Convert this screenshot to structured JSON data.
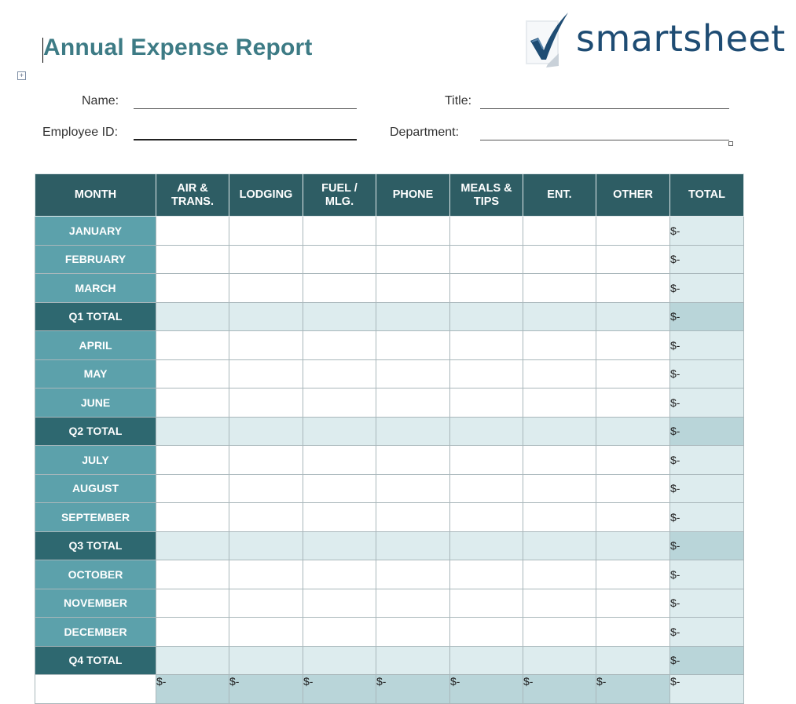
{
  "document": {
    "title": "Annual Expense Report",
    "brand": "smartsheet"
  },
  "fields": {
    "name_label": "Name:",
    "title_label": "Title:",
    "employee_id_label": "Employee ID:",
    "department_label": "Department:"
  },
  "table": {
    "headers": [
      "MONTH",
      "AIR &\nTRANS.",
      "LODGING",
      "FUEL /\nMLG.",
      "PHONE",
      "MEALS &\nTIPS",
      "ENT.",
      "OTHER",
      "TOTAL"
    ],
    "rows": [
      {
        "label": "JANUARY",
        "total": "$-"
      },
      {
        "label": "FEBRUARY",
        "total": "$-"
      },
      {
        "label": "MARCH",
        "total": "$-"
      },
      {
        "label": "Q1 TOTAL",
        "total": "$-"
      },
      {
        "label": "APRIL",
        "total": "$-"
      },
      {
        "label": "MAY",
        "total": "$-"
      },
      {
        "label": "JUNE",
        "total": "$-"
      },
      {
        "label": "Q2 TOTAL",
        "total": "$-"
      },
      {
        "label": "JULY",
        "total": "$-"
      },
      {
        "label": "AUGUST",
        "total": "$-"
      },
      {
        "label": "SEPTEMBER",
        "total": "$-"
      },
      {
        "label": "Q3 TOTAL",
        "total": "$-"
      },
      {
        "label": "OCTOBER",
        "total": "$-"
      },
      {
        "label": "NOVEMBER",
        "total": "$-"
      },
      {
        "label": "DECEMBER",
        "total": "$-"
      },
      {
        "label": "Q4 TOTAL",
        "total": "$-"
      }
    ],
    "grand_totals": [
      "$-",
      "$-",
      "$-",
      "$-",
      "$-",
      "$-",
      "$-",
      "$-"
    ]
  },
  "colors": {
    "title": "#3d7b85",
    "header_bg": "#2e5d64",
    "month_bg": "#5ca1ab",
    "quarter_bg": "#2e6870",
    "quarter_row_bg": "#ddecee",
    "total_col_bg": "#ddecee",
    "brand": "#1e4c73"
  },
  "icons": {
    "logo": "checkmark-icon",
    "table_handle": "move-icon"
  }
}
